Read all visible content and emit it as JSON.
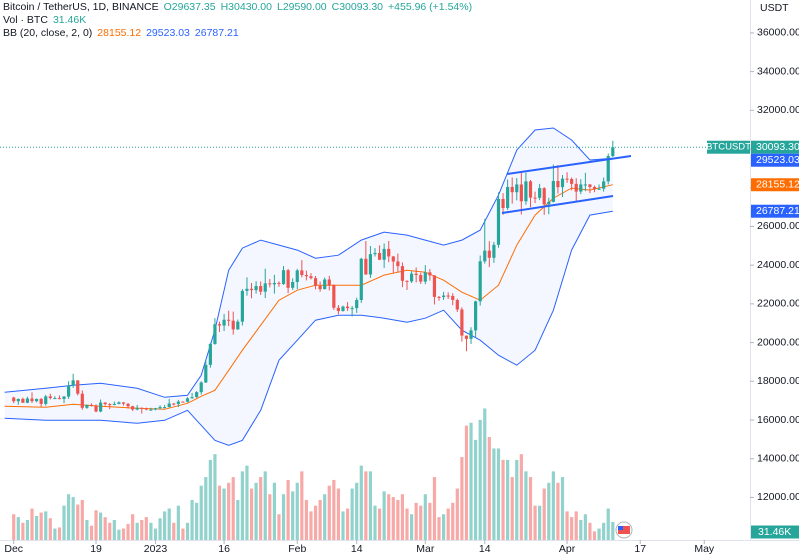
{
  "header": {
    "symbol": "Bitcoin / TetherUS, 1D, BINANCE",
    "open": "O29637.35",
    "high": "H30430.00",
    "low": "L29590.00",
    "close": "C30093.30",
    "change": "+455.96 (+1.54%)",
    "volume_title": "Vol · BTC",
    "volume_value": "31.46K",
    "bb_title": "BB (20, close, 2, 0)",
    "bb_basis": "28155.12",
    "bb_upper": "29523.03",
    "bb_lower": "26787.21"
  },
  "chart_data": {
    "type": "candlestick",
    "y_axis_label": "USDT",
    "last_price_tag": "BTCUSDT",
    "up_color": "#26a69a",
    "down_color": "#ef5350",
    "grid": false,
    "xlim": [
      "2022-11-28",
      "2023-05-11"
    ],
    "xticks": [
      {
        "value": "2022-12-01",
        "label": "Dec"
      },
      {
        "value": "2022-12-19",
        "label": "19"
      },
      {
        "value": "2023-01-01",
        "label": "2023"
      },
      {
        "value": "2023-01-16",
        "label": "16"
      },
      {
        "value": "2023-02-01",
        "label": "Feb"
      },
      {
        "value": "2023-02-14",
        "label": "14"
      },
      {
        "value": "2023-03-01",
        "label": "Mar"
      },
      {
        "value": "2023-03-14",
        "label": "14"
      },
      {
        "value": "2023-04-01",
        "label": "Apr"
      },
      {
        "value": "2023-04-17",
        "label": "17"
      },
      {
        "value": "2023-05-01",
        "label": "May"
      }
    ],
    "ylim": [
      9800,
      37700
    ],
    "yticks": [
      {
        "value": 12000,
        "label": "12000.00"
      },
      {
        "value": 14000,
        "label": "14000.00"
      },
      {
        "value": 16000,
        "label": "16000.00"
      },
      {
        "value": 18000,
        "label": "18000.00"
      },
      {
        "value": 20000,
        "label": "20000.00"
      },
      {
        "value": 22000,
        "label": "22000.00"
      },
      {
        "value": 24000,
        "label": "24000.00"
      },
      {
        "value": 26000,
        "label": "26000.00"
      },
      {
        "value": 28000,
        "label": "28000.00"
      },
      {
        "value": 30000,
        "label": "30000.00"
      },
      {
        "value": 32000,
        "label": "32000.00"
      },
      {
        "value": 34000,
        "label": "34000.00"
      },
      {
        "value": 36000,
        "label": "36000.00"
      }
    ],
    "volume_ylim": [
      0,
      250000
    ],
    "x": [
      "2022-12-01",
      "2022-12-02",
      "2022-12-03",
      "2022-12-04",
      "2022-12-05",
      "2022-12-06",
      "2022-12-07",
      "2022-12-08",
      "2022-12-09",
      "2022-12-10",
      "2022-12-11",
      "2022-12-12",
      "2022-12-13",
      "2022-12-14",
      "2022-12-15",
      "2022-12-16",
      "2022-12-17",
      "2022-12-18",
      "2022-12-19",
      "2022-12-20",
      "2022-12-21",
      "2022-12-22",
      "2022-12-23",
      "2022-12-24",
      "2022-12-25",
      "2022-12-26",
      "2022-12-27",
      "2022-12-28",
      "2022-12-29",
      "2022-12-30",
      "2022-12-31",
      "2023-01-01",
      "2023-01-02",
      "2023-01-03",
      "2023-01-04",
      "2023-01-05",
      "2023-01-06",
      "2023-01-07",
      "2023-01-08",
      "2023-01-09",
      "2023-01-10",
      "2023-01-11",
      "2023-01-12",
      "2023-01-13",
      "2023-01-14",
      "2023-01-15",
      "2023-01-16",
      "2023-01-17",
      "2023-01-18",
      "2023-01-19",
      "2023-01-20",
      "2023-01-21",
      "2023-01-22",
      "2023-01-23",
      "2023-01-24",
      "2023-01-25",
      "2023-01-26",
      "2023-01-27",
      "2023-01-28",
      "2023-01-29",
      "2023-01-30",
      "2023-01-31",
      "2023-02-01",
      "2023-02-02",
      "2023-02-03",
      "2023-02-04",
      "2023-02-05",
      "2023-02-06",
      "2023-02-07",
      "2023-02-08",
      "2023-02-09",
      "2023-02-10",
      "2023-02-11",
      "2023-02-12",
      "2023-02-13",
      "2023-02-14",
      "2023-02-15",
      "2023-02-16",
      "2023-02-17",
      "2023-02-18",
      "2023-02-19",
      "2023-02-20",
      "2023-02-21",
      "2023-02-22",
      "2023-02-23",
      "2023-02-24",
      "2023-02-25",
      "2023-02-26",
      "2023-02-27",
      "2023-02-28",
      "2023-03-01",
      "2023-03-02",
      "2023-03-03",
      "2023-03-04",
      "2023-03-05",
      "2023-03-06",
      "2023-03-07",
      "2023-03-08",
      "2023-03-09",
      "2023-03-10",
      "2023-03-11",
      "2023-03-12",
      "2023-03-13",
      "2023-03-14",
      "2023-03-15",
      "2023-03-16",
      "2023-03-17",
      "2023-03-18",
      "2023-03-19",
      "2023-03-20",
      "2023-03-21",
      "2023-03-22",
      "2023-03-23",
      "2023-03-24",
      "2023-03-25",
      "2023-03-26",
      "2023-03-27",
      "2023-03-28",
      "2023-03-29",
      "2023-03-30",
      "2023-03-31",
      "2023-04-01",
      "2023-04-02",
      "2023-04-03",
      "2023-04-04",
      "2023-04-05",
      "2023-04-06",
      "2023-04-07",
      "2023-04-08",
      "2023-04-09",
      "2023-04-10",
      "2023-04-11"
    ],
    "open": [
      17160,
      16970,
      17090,
      16890,
      17110,
      16970,
      17090,
      16830,
      17220,
      17130,
      17130,
      17090,
      17210,
      17780,
      18050,
      17360,
      16630,
      16780,
      16740,
      16440,
      16900,
      16820,
      16780,
      16830,
      16910,
      16840,
      16710,
      16540,
      16630,
      16600,
      16540,
      16540,
      16610,
      16670,
      16670,
      16850,
      16830,
      16950,
      16940,
      17120,
      17180,
      17440,
      17940,
      18850,
      19930,
      20950,
      20880,
      21180,
      21130,
      20680,
      21080,
      22670,
      22780,
      22710,
      22920,
      22630,
      23060,
      23010,
      23080,
      23030,
      23740,
      22830,
      23130,
      23730,
      23490,
      23430,
      23330,
      22930,
      22760,
      23260,
      22960,
      21800,
      21630,
      21860,
      21780,
      21780,
      22200,
      24330,
      23520,
      24570,
      24630,
      24280,
      24840,
      24450,
      24190,
      23950,
      23190,
      23160,
      23560,
      23490,
      23150,
      23630,
      23470,
      22360,
      22350,
      22430,
      22410,
      22200,
      21710,
      20360,
      20190,
      20630,
      22130,
      24200,
      24750,
      24380,
      25050,
      27420,
      26950,
      28040,
      27770,
      28170,
      27300,
      28330,
      27490,
      27480,
      27980,
      27140,
      27270,
      28350,
      28030,
      28470,
      28450,
      28200,
      27800,
      28170,
      28170,
      28040,
      27920,
      27950,
      28330,
      29637.35
    ],
    "high": [
      17200,
      17110,
      17160,
      17200,
      17430,
      17110,
      17140,
      17300,
      17360,
      17230,
      17270,
      17240,
      18000,
      18390,
      18050,
      17530,
      16800,
      16860,
      16810,
      17060,
      16920,
      16870,
      16950,
      16960,
      16920,
      16870,
      16740,
      16780,
      16650,
      16640,
      16630,
      16630,
      16760,
      16780,
      17090,
      16880,
      17040,
      16970,
      17180,
      17400,
      17490,
      18000,
      19110,
      19970,
      21260,
      21080,
      21480,
      21650,
      21600,
      21190,
      22760,
      23370,
      23080,
      23170,
      23160,
      23820,
      23290,
      23500,
      23170,
      23960,
      23810,
      23320,
      23810,
      24260,
      23720,
      23590,
      23440,
      23160,
      23360,
      23450,
      23010,
      21940,
      21910,
      22090,
      21890,
      22320,
      24380,
      25250,
      24990,
      24880,
      25020,
      25120,
      25250,
      24480,
      24600,
      24140,
      23220,
      23690,
      23880,
      23610,
      24000,
      23800,
      23480,
      22410,
      22620,
      22600,
      22550,
      22270,
      21820,
      20370,
      20790,
      22170,
      24500,
      26390,
      25240,
      25200,
      27760,
      27720,
      28420,
      28530,
      28500,
      28860,
      28780,
      28400,
      27800,
      28200,
      28030,
      27480,
      29200,
      29170,
      28660,
      28800,
      28530,
      28490,
      28440,
      28770,
      28190,
      28110,
      28170,
      28530,
      29770,
      30430
    ],
    "low": [
      16870,
      16790,
      16880,
      16870,
      16880,
      16910,
      16680,
      16740,
      17060,
      17090,
      17070,
      16870,
      17090,
      17660,
      17270,
      16530,
      16580,
      16690,
      16400,
      16400,
      16740,
      16560,
      16760,
      16810,
      16740,
      16590,
      16470,
      16500,
      16330,
      16500,
      16470,
      16500,
      16540,
      16600,
      16650,
      16750,
      16670,
      16910,
      16910,
      17100,
      17150,
      17310,
      17910,
      18700,
      19890,
      20550,
      20600,
      20850,
      20410,
      20660,
      20880,
      22420,
      22290,
      22530,
      22460,
      22300,
      22850,
      22530,
      22880,
      22980,
      22550,
      22720,
      22760,
      23370,
      23210,
      23260,
      22750,
      22630,
      22750,
      22690,
      21690,
      21460,
      21600,
      21630,
      21350,
      21530,
      22050,
      23500,
      23340,
      24450,
      24260,
      23860,
      24150,
      23580,
      23620,
      22860,
      22720,
      23080,
      23110,
      23030,
      23020,
      23200,
      21970,
      22160,
      22200,
      22250,
      21930,
      21580,
      20050,
      19550,
      19930,
      20270,
      21910,
      24080,
      23900,
      24120,
      24900,
      26600,
      26850,
      27180,
      27350,
      26620,
      27120,
      27000,
      27210,
      27360,
      26600,
      26630,
      27240,
      27700,
      27520,
      28250,
      27870,
      27250,
      27670,
      27820,
      27720,
      27770,
      27880,
      27800,
      28170,
      29590
    ],
    "close": [
      16970,
      17090,
      16890,
      17110,
      16970,
      17090,
      16830,
      17220,
      17130,
      17130,
      17090,
      17210,
      17780,
      18050,
      17360,
      16630,
      16780,
      16740,
      16440,
      16900,
      16820,
      16780,
      16830,
      16910,
      16840,
      16710,
      16540,
      16630,
      16600,
      16540,
      16540,
      16610,
      16670,
      16670,
      16850,
      16830,
      16950,
      16940,
      17120,
      17180,
      17440,
      17940,
      18850,
      19930,
      20950,
      20880,
      21180,
      21130,
      20680,
      21080,
      22670,
      22780,
      22710,
      22920,
      22630,
      23060,
      23010,
      23080,
      23030,
      23740,
      22830,
      23130,
      23730,
      23490,
      23430,
      23330,
      22930,
      22760,
      23260,
      22960,
      21800,
      21630,
      21860,
      21780,
      21780,
      22200,
      24330,
      23520,
      24570,
      24630,
      24280,
      24840,
      24450,
      24190,
      23950,
      23190,
      23160,
      23560,
      23490,
      23150,
      23630,
      23470,
      22360,
      22350,
      22430,
      22410,
      22200,
      21710,
      20360,
      20190,
      20630,
      22130,
      24200,
      24750,
      24380,
      25050,
      27420,
      26950,
      28040,
      27770,
      28170,
      27300,
      28330,
      27490,
      27480,
      27980,
      27140,
      27270,
      28350,
      28030,
      28470,
      28450,
      28200,
      27800,
      28170,
      28170,
      28040,
      27920,
      27950,
      28330,
      29637.35,
      30093.3
    ],
    "volume": [
      45000,
      40000,
      30000,
      35000,
      55000,
      42000,
      48000,
      50000,
      38000,
      20000,
      22000,
      60000,
      80000,
      75000,
      62000,
      70000,
      35000,
      25000,
      52000,
      48000,
      40000,
      30000,
      35000,
      18000,
      20000,
      28000,
      45000,
      30000,
      35000,
      40000,
      30000,
      20000,
      38000,
      50000,
      55000,
      30000,
      60000,
      20000,
      30000,
      70000,
      65000,
      95000,
      110000,
      140000,
      150000,
      95000,
      90000,
      100000,
      110000,
      70000,
      120000,
      130000,
      90000,
      100000,
      110000,
      120000,
      80000,
      100000,
      45000,
      80000,
      105000,
      85000,
      100000,
      120000,
      70000,
      50000,
      60000,
      70000,
      80000,
      95000,
      105000,
      90000,
      50000,
      55000,
      90000,
      100000,
      130000,
      120000,
      120000,
      60000,
      55000,
      85000,
      80000,
      75000,
      70000,
      80000,
      55000,
      45000,
      65000,
      60000,
      80000,
      65000,
      110000,
      40000,
      45000,
      55000,
      65000,
      90000,
      145000,
      200000,
      205000,
      175000,
      210000,
      230000,
      180000,
      160000,
      160000,
      140000,
      140000,
      110000,
      140000,
      150000,
      120000,
      110000,
      60000,
      60000,
      90000,
      100000,
      120000,
      100000,
      110000,
      50000,
      40000,
      50000,
      35000,
      45000,
      30000,
      15000,
      20000,
      30000,
      55000,
      31460
    ],
    "volume_marker": {
      "value": 31460,
      "label": "31.46K"
    },
    "price_markers": [
      {
        "value": 30093.3,
        "label": "30093.30",
        "color": "#26a69a"
      },
      {
        "value": 29523.03,
        "label": "29523.03",
        "color": "#2962ff"
      },
      {
        "value": 28155.12,
        "label": "28155.12",
        "color": "#ff6d00"
      },
      {
        "value": 26787.21,
        "label": "26787.21",
        "color": "#2962ff"
      }
    ],
    "bb": {
      "band_color": "#2962ff",
      "basis_color": "#ff6d00",
      "x": [
        "2022-11-29",
        "2022-12-08",
        "2022-12-14",
        "2022-12-20",
        "2022-12-28",
        "2023-01-03",
        "2023-01-08",
        "2023-01-11",
        "2023-01-14",
        "2023-01-17",
        "2023-01-20",
        "2023-01-24",
        "2023-01-28",
        "2023-02-01",
        "2023-02-05",
        "2023-02-10",
        "2023-02-15",
        "2023-02-20",
        "2023-02-25",
        "2023-03-01",
        "2023-03-05",
        "2023-03-09",
        "2023-03-13",
        "2023-03-17",
        "2023-03-21",
        "2023-03-25",
        "2023-03-29",
        "2023-04-02",
        "2023-04-06",
        "2023-04-11"
      ],
      "upper": [
        17433,
        17640,
        17795,
        17898,
        17640,
        17174,
        17277,
        18311,
        20638,
        23741,
        24879,
        25293,
        25034,
        24776,
        24362,
        24517,
        25293,
        25707,
        25552,
        25293,
        25034,
        25293,
        25810,
        27621,
        29948,
        30983,
        31086,
        30465,
        29431,
        29523.03
      ],
      "basis": [
        16709,
        16657,
        16812,
        16709,
        16605,
        16553,
        16864,
        17226,
        17536,
        18570,
        19605,
        20897,
        22190,
        22708,
        22967,
        22967,
        22967,
        23484,
        23741,
        23638,
        23225,
        22605,
        22190,
        22967,
        25035,
        26587,
        27466,
        27983,
        27880,
        28155.12
      ],
      "lower": [
        16089,
        15986,
        15986,
        15986,
        15831,
        15986,
        16501,
        15726,
        14950,
        14691,
        14950,
        16501,
        19088,
        20122,
        21156,
        21415,
        21415,
        21260,
        21053,
        21260,
        21673,
        20638,
        20122,
        19346,
        18829,
        19605,
        21673,
        24776,
        26587,
        26787.21
      ]
    }
  }
}
